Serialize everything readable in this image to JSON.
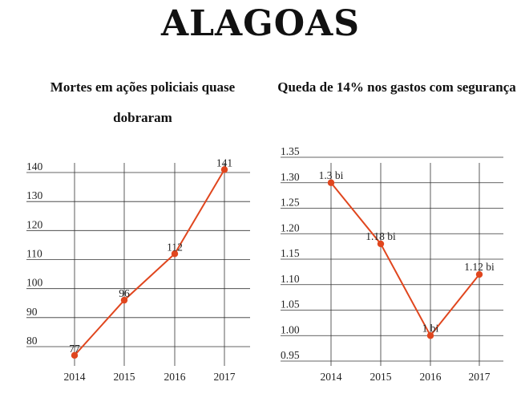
{
  "page_title": "ALAGOAS",
  "line_color": "#e0461e",
  "chart_data": [
    {
      "type": "line",
      "title": "Mortes em ações policiais quase dobraram",
      "x": [
        "2014",
        "2015",
        "2016",
        "2017"
      ],
      "values": [
        77,
        96,
        112,
        141
      ],
      "data_labels": [
        "77",
        "96",
        "112",
        "141"
      ],
      "ylim": [
        75,
        145
      ],
      "yticks": [
        "80",
        "90",
        "100",
        "110",
        "120",
        "130",
        "140"
      ],
      "grid": true
    },
    {
      "type": "line",
      "title": "Queda de 14% nos gastos com segurança",
      "x": [
        "2014",
        "2015",
        "2016",
        "2017"
      ],
      "values": [
        1.3,
        1.18,
        1.0,
        1.12
      ],
      "data_labels": [
        "1.3 bi",
        "1.18 bi",
        "1 bi",
        "1.12 bi"
      ],
      "ylim": [
        0.95,
        1.35
      ],
      "yticks": [
        "0.95",
        "1.00",
        "1.05",
        "1.10",
        "1.15",
        "1.20",
        "1.25",
        "1.30",
        "1.35"
      ],
      "grid": true
    }
  ]
}
